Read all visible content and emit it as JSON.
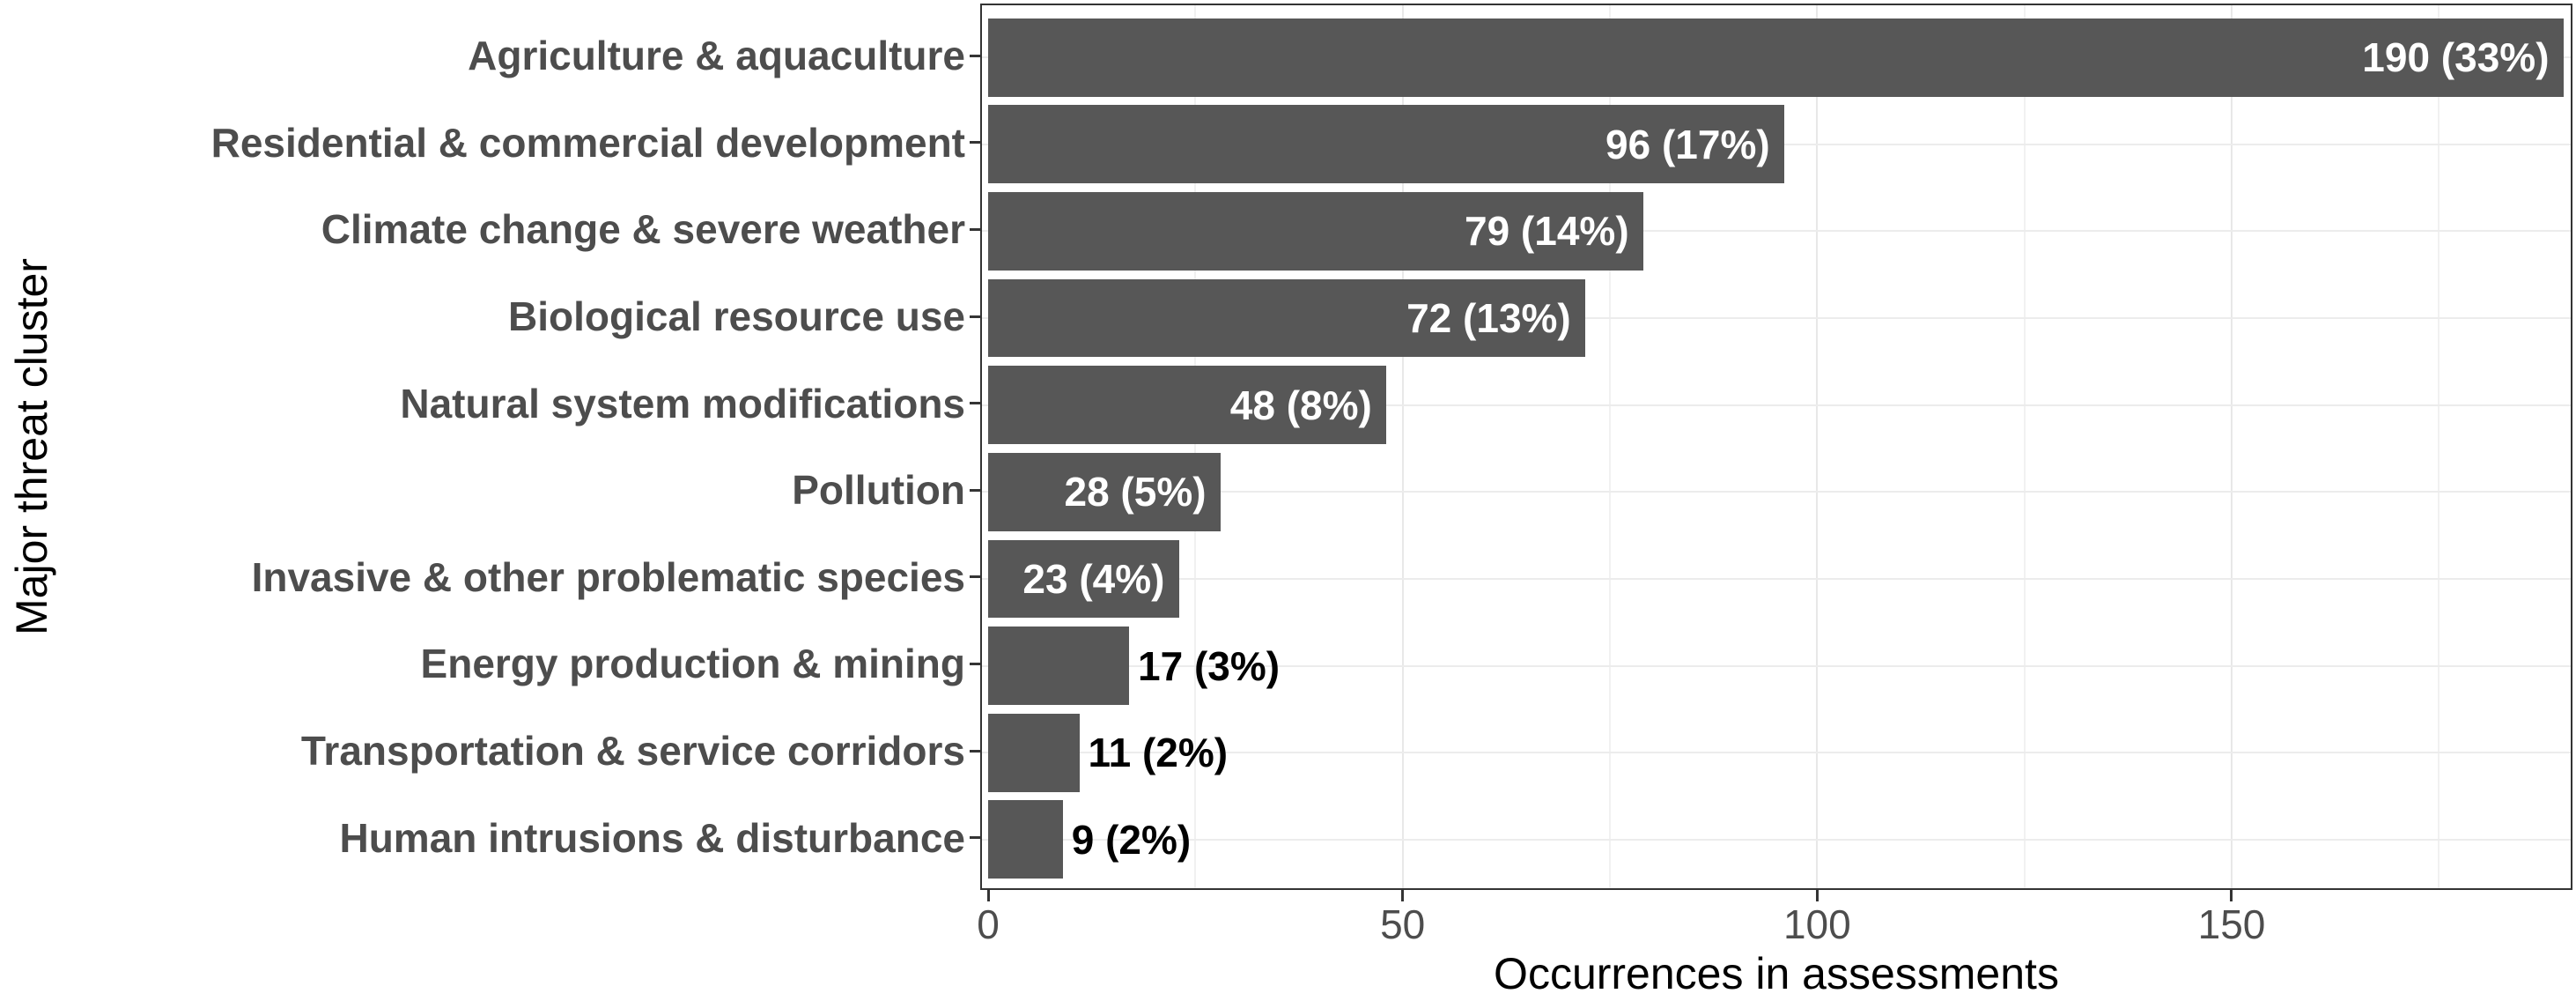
{
  "chart_data": {
    "type": "bar",
    "orientation": "horizontal",
    "title": "",
    "xlabel": "Occurrences in assessments",
    "ylabel": "Major threat cluster",
    "categories": [
      "Agriculture & aquaculture",
      "Residential & commercial development",
      "Climate change & severe weather",
      "Biological resource use",
      "Natural system modifications",
      "Pollution",
      "Invasive & other problematic species",
      "Energy production & mining",
      "Transportation & service corridors",
      "Human intrusions & disturbance"
    ],
    "values": [
      190,
      96,
      79,
      72,
      48,
      28,
      23,
      17,
      11,
      9
    ],
    "percents": [
      "33%",
      "17%",
      "14%",
      "13%",
      "8%",
      "5%",
      "4%",
      "3%",
      "2%",
      "2%"
    ],
    "bar_labels": [
      "190 (33%)",
      "96 (17%)",
      "79 (14%)",
      "72 (13%)",
      "48 (8%)",
      "28 (5%)",
      "23 (4%)",
      "17 (3%)",
      "11 (2%)",
      "9 (2%)"
    ],
    "label_inside": [
      true,
      true,
      true,
      true,
      true,
      true,
      true,
      false,
      false,
      false
    ],
    "xlim": [
      0,
      191
    ],
    "xticks": [
      0,
      50,
      100,
      150
    ],
    "xtick_labels": [
      "0",
      "50",
      "100",
      "150"
    ],
    "minor_xticks": [
      25,
      75,
      125,
      175
    ],
    "grid": true,
    "legend": false,
    "colors": {
      "bar": "#575757",
      "label_inside": "#ffffff",
      "label_outside": "#000000",
      "axis_text": "#4d4d4d",
      "axis_title": "#000000",
      "panel_border": "#343434",
      "grid_major": "#e8e8e8",
      "grid_minor": "#f1f1f1"
    }
  }
}
